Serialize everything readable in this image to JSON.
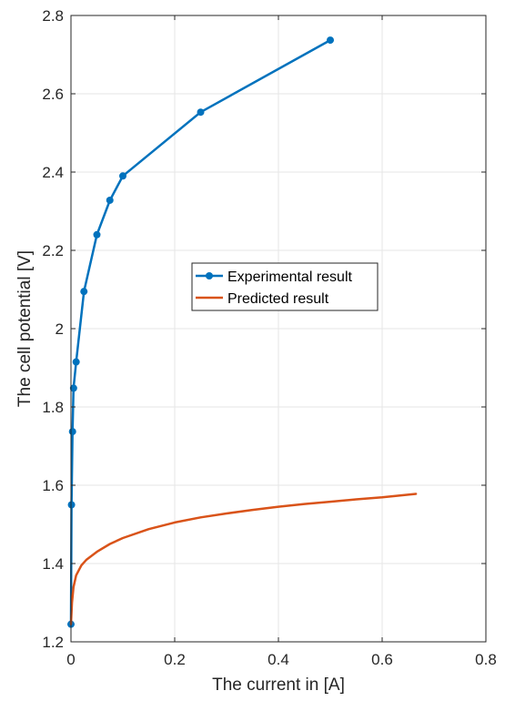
{
  "chart_data": {
    "type": "line",
    "xlabel": "The current in [A]",
    "ylabel": "The cell potential [V]",
    "xlim": [
      0,
      0.8
    ],
    "ylim": [
      1.2,
      2.8
    ],
    "xticks": [
      0,
      0.2,
      0.4,
      0.6,
      0.8
    ],
    "xtick_labels": [
      "0",
      "0.2",
      "0.4",
      "0.6",
      "0.8"
    ],
    "yticks": [
      1.2,
      1.4,
      1.6,
      1.8,
      2,
      2.2,
      2.4,
      2.6,
      2.8
    ],
    "ytick_labels": [
      "1.2",
      "1.4",
      "1.6",
      "1.8",
      "2",
      "2.2",
      "2.4",
      "2.6",
      "2.8"
    ],
    "grid": true,
    "legend_position": "center",
    "series": [
      {
        "name": "Experimental result",
        "color": "#0072BD",
        "marker": "circle",
        "x": [
          0.0,
          0.001,
          0.003,
          0.005,
          0.01,
          0.025,
          0.05,
          0.075,
          0.1,
          0.25,
          0.5
        ],
        "y": [
          1.245,
          1.55,
          1.737,
          1.848,
          1.915,
          2.095,
          2.24,
          2.328,
          2.39,
          2.553,
          2.737
        ]
      },
      {
        "name": "Predicted result",
        "color": "#D95319",
        "marker": "none",
        "x": [
          0.0,
          0.002,
          0.005,
          0.01,
          0.02,
          0.03,
          0.05,
          0.075,
          0.1,
          0.15,
          0.2,
          0.25,
          0.3,
          0.35,
          0.4,
          0.45,
          0.5,
          0.55,
          0.6,
          0.665
        ],
        "y": [
          1.245,
          1.3,
          1.34,
          1.37,
          1.395,
          1.41,
          1.43,
          1.45,
          1.465,
          1.488,
          1.505,
          1.518,
          1.528,
          1.537,
          1.545,
          1.552,
          1.558,
          1.564,
          1.569,
          1.578
        ]
      }
    ]
  }
}
